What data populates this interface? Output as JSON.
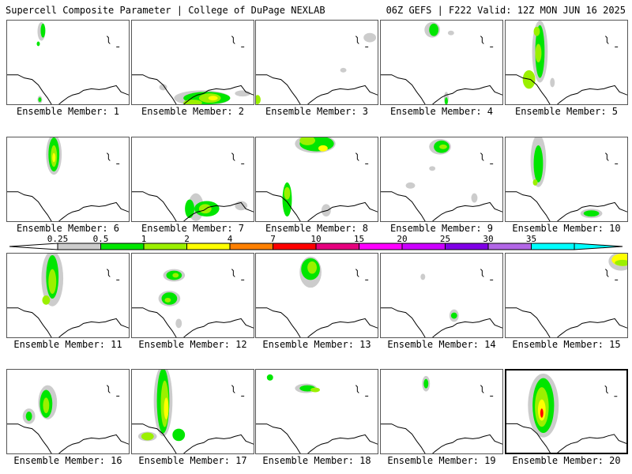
{
  "header": {
    "title_left": "Supercell Composite Parameter | College of DuPage NEXLAB",
    "title_right": "06Z GEFS | F222 Valid: 12Z MON JUN 16 2025"
  },
  "legend": {
    "labels": [
      "0.25",
      "0.5",
      "1",
      "2",
      "4",
      "7",
      "10",
      "15",
      "20",
      "25",
      "30",
      "35"
    ],
    "colors": [
      "#cccccc",
      "#00e600",
      "#9bf000",
      "#ffff00",
      "#ff8000",
      "#ff0000",
      "#e6007e",
      "#ff00ff",
      "#cc00ff",
      "#8000e6",
      "#b266e6",
      "#00ffff"
    ],
    "underflow_color": "#ffffff"
  },
  "members": [
    {
      "caption": "Ensemble Member: 1",
      "highlighted": false
    },
    {
      "caption": "Ensemble Member: 2",
      "highlighted": false
    },
    {
      "caption": "Ensemble Member: 3",
      "highlighted": false
    },
    {
      "caption": "Ensemble Member: 4",
      "highlighted": false
    },
    {
      "caption": "Ensemble Member: 5",
      "highlighted": false
    },
    {
      "caption": "Ensemble Member: 6",
      "highlighted": false
    },
    {
      "caption": "Ensemble Member: 7",
      "highlighted": false
    },
    {
      "caption": "Ensemble Member: 8",
      "highlighted": false
    },
    {
      "caption": "Ensemble Member: 9",
      "highlighted": false
    },
    {
      "caption": "Ensemble Member: 10",
      "highlighted": false
    },
    {
      "caption": "Ensemble Member: 11",
      "highlighted": false
    },
    {
      "caption": "Ensemble Member: 12",
      "highlighted": false
    },
    {
      "caption": "Ensemble Member: 13",
      "highlighted": false
    },
    {
      "caption": "Ensemble Member: 14",
      "highlighted": false
    },
    {
      "caption": "Ensemble Member: 15",
      "highlighted": false
    },
    {
      "caption": "Ensemble Member: 16",
      "highlighted": false
    },
    {
      "caption": "Ensemble Member: 17",
      "highlighted": false
    },
    {
      "caption": "Ensemble Member: 18",
      "highlighted": false
    },
    {
      "caption": "Ensemble Member: 19",
      "highlighted": false
    },
    {
      "caption": "Ensemble Member: 20",
      "highlighted": true
    }
  ]
}
